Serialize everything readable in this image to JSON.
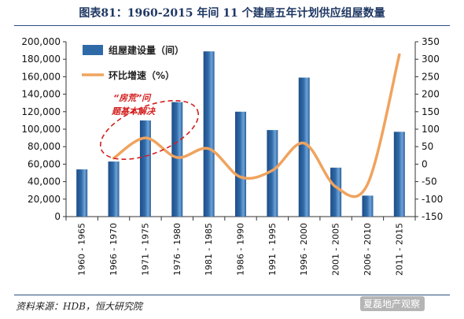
{
  "title": "图表81：1960-2015 年间 11 个建屋五年计划供应组屋数量",
  "source": "资料来源：HDB，恒大研究院",
  "watermark": "夏磊地产观察",
  "annotation": [
    "“房荒”问",
    "题基本解决"
  ],
  "colors": {
    "bar": "#2f6aa8",
    "line": "#f0a35e",
    "annotation": "#d42020",
    "title": "#1f3864"
  },
  "chart_data": {
    "type": "bar+line",
    "categories": [
      "1960 - 1965",
      "1966 - 1970",
      "1971 - 1975",
      "1976 - 1980",
      "1981 - 1985",
      "1986 - 1990",
      "1991 - 1995",
      "1996 - 2000",
      "2001 - 2005",
      "2006 - 2010",
      "2011 - 2015"
    ],
    "series": [
      {
        "name": "组屋建设量（间）",
        "type": "bar",
        "axis": "left",
        "values": [
          54000,
          63000,
          110000,
          131000,
          189000,
          120000,
          99000,
          159000,
          56000,
          24000,
          97000
        ]
      },
      {
        "name": "环比增速（%）",
        "type": "line",
        "axis": "right",
        "values": [
          null,
          17,
          75,
          19,
          44,
          -37,
          -18,
          60,
          -65,
          -57,
          313
        ]
      }
    ],
    "y_left": {
      "ylim": [
        0,
        200000
      ],
      "ticks": [
        "0",
        "20,000",
        "40,000",
        "60,000",
        "80,000",
        "100,000",
        "120,000",
        "140,000",
        "160,000",
        "180,000",
        "200,000"
      ]
    },
    "y_right": {
      "ylim": [
        -150,
        350
      ],
      "ticks": [
        "-150",
        "-100",
        "-50",
        "0",
        "50",
        "100",
        "150",
        "200",
        "250",
        "300",
        "350"
      ]
    },
    "legend_position": "top-left",
    "grid": false
  }
}
